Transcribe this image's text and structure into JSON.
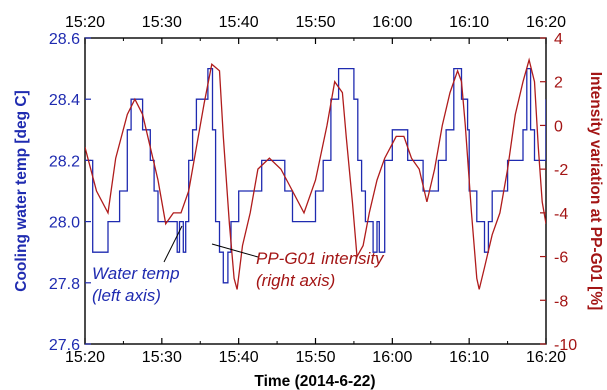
{
  "chart_data": {
    "type": "line",
    "x_ticks": [
      "15:20",
      "15:30",
      "15:40",
      "15:50",
      "16:00",
      "16:10",
      "16:20"
    ],
    "xlabel": "Time (2014-6-22)",
    "ylabel_left": "Cooling water temp [deg C]",
    "ylabel_right": "Intensity variation at PP-G01 [%]",
    "y_left_ticks": [
      "27.6",
      "27.8",
      "28.0",
      "28.2",
      "28.4",
      "28.6"
    ],
    "y_right_ticks": [
      "-10",
      "-8",
      "-6",
      "-4",
      "-2",
      "0",
      "2",
      "4"
    ],
    "y_left_range": [
      27.6,
      28.6
    ],
    "y_right_range": [
      -10,
      4
    ],
    "x_range_minutes": [
      0,
      60
    ],
    "x_unit": "minutes after 15:20",
    "colors": {
      "water": "#1f2bb0",
      "intensity": "#b01c1c",
      "left_axis": "#1f2bb0",
      "right_axis": "#a31515"
    },
    "annotations": {
      "water_line1": "Water temp",
      "water_line2": "(left axis)",
      "intensity_line1": "PP-G01 intensity",
      "intensity_line2": "(right axis)"
    },
    "series": [
      {
        "name": "Water temp",
        "axis": "left",
        "step": true,
        "points": [
          [
            0,
            28.2
          ],
          [
            1,
            27.9
          ],
          [
            3,
            28.0
          ],
          [
            4.5,
            28.1
          ],
          [
            5.5,
            28.3
          ],
          [
            6,
            28.4
          ],
          [
            7.5,
            28.3
          ],
          [
            8.5,
            28.2
          ],
          [
            9,
            28.1
          ],
          [
            9.5,
            28.0
          ],
          [
            12,
            27.9
          ],
          [
            12.3,
            28.0
          ],
          [
            12.8,
            27.9
          ],
          [
            13.1,
            28.0
          ],
          [
            13.5,
            28.2
          ],
          [
            14,
            28.3
          ],
          [
            14.5,
            28.4
          ],
          [
            16,
            28.5
          ],
          [
            16.6,
            28.3
          ],
          [
            17,
            28.0
          ],
          [
            17.5,
            27.9
          ],
          [
            18,
            27.8
          ],
          [
            18.6,
            27.9
          ],
          [
            19,
            28.0
          ],
          [
            20,
            28.1
          ],
          [
            23,
            28.2
          ],
          [
            26,
            28.1
          ],
          [
            27,
            28.0
          ],
          [
            30,
            28.1
          ],
          [
            31,
            28.2
          ],
          [
            32,
            28.4
          ],
          [
            33,
            28.5
          ],
          [
            35,
            28.4
          ],
          [
            35.5,
            28.2
          ],
          [
            36,
            28.1
          ],
          [
            36.5,
            28.0
          ],
          [
            37.5,
            27.9
          ],
          [
            38,
            28.0
          ],
          [
            38.3,
            27.9
          ],
          [
            39,
            28.2
          ],
          [
            40,
            28.3
          ],
          [
            42,
            28.2
          ],
          [
            44,
            28.1
          ],
          [
            46,
            28.2
          ],
          [
            47,
            28.3
          ],
          [
            48,
            28.5
          ],
          [
            49,
            28.4
          ],
          [
            49.8,
            28.3
          ],
          [
            50,
            28.1
          ],
          [
            51,
            28.0
          ],
          [
            52,
            27.9
          ],
          [
            52.5,
            28.0
          ],
          [
            53,
            28.1
          ],
          [
            55,
            28.2
          ],
          [
            57,
            28.3
          ],
          [
            57.5,
            28.5
          ],
          [
            58,
            28.3
          ],
          [
            58.5,
            28.2
          ],
          [
            60,
            28.4
          ]
        ]
      },
      {
        "name": "PP-G01 intensity",
        "axis": "right",
        "points": [
          [
            0,
            -1.0
          ],
          [
            1.5,
            -3.0
          ],
          [
            3,
            -4.0
          ],
          [
            4,
            -1.5
          ],
          [
            5.5,
            0.5
          ],
          [
            6.5,
            1.2
          ],
          [
            7.5,
            0.5
          ],
          [
            8.5,
            -1.0
          ],
          [
            9.5,
            -2.5
          ],
          [
            10.5,
            -4.5
          ],
          [
            11.5,
            -4.0
          ],
          [
            12.5,
            -4.0
          ],
          [
            13.5,
            -3.0
          ],
          [
            14.5,
            -1.0
          ],
          [
            15.5,
            1.0
          ],
          [
            16.5,
            2.8
          ],
          [
            17.5,
            2.5
          ],
          [
            18,
            -0.5
          ],
          [
            18.8,
            -4.5
          ],
          [
            19.4,
            -7.0
          ],
          [
            19.8,
            -7.5
          ],
          [
            20.5,
            -5.5
          ],
          [
            21.5,
            -4.0
          ],
          [
            22.5,
            -2.0
          ],
          [
            24,
            -1.5
          ],
          [
            25.5,
            -2.0
          ],
          [
            27,
            -3.0
          ],
          [
            28.5,
            -4.0
          ],
          [
            30,
            -2.5
          ],
          [
            31.5,
            0.0
          ],
          [
            32.5,
            2.0
          ],
          [
            33.5,
            1.5
          ],
          [
            34,
            -0.5
          ],
          [
            34.8,
            -3.5
          ],
          [
            35.4,
            -6.0
          ],
          [
            36.2,
            -5.5
          ],
          [
            37,
            -4.0
          ],
          [
            38,
            -2.5
          ],
          [
            39,
            -1.5
          ],
          [
            40.5,
            -0.5
          ],
          [
            41.5,
            -0.5
          ],
          [
            42.5,
            -1.5
          ],
          [
            43.5,
            -2.0
          ],
          [
            44.5,
            -3.5
          ],
          [
            45.5,
            -2.0
          ],
          [
            46.5,
            0.0
          ],
          [
            47.5,
            1.5
          ],
          [
            48.5,
            2.5
          ],
          [
            49,
            2.0
          ],
          [
            49.5,
            0.0
          ],
          [
            50.3,
            -4.0
          ],
          [
            51,
            -7.0
          ],
          [
            51.3,
            -7.5
          ],
          [
            52,
            -6.5
          ],
          [
            53,
            -5.0
          ],
          [
            54,
            -4.0
          ],
          [
            55,
            -2.0
          ],
          [
            56,
            0.5
          ],
          [
            57,
            2.0
          ],
          [
            57.8,
            3.0
          ],
          [
            58.5,
            2.0
          ],
          [
            59,
            -1.0
          ],
          [
            59.5,
            -3.5
          ],
          [
            60,
            -4.5
          ]
        ]
      }
    ]
  }
}
